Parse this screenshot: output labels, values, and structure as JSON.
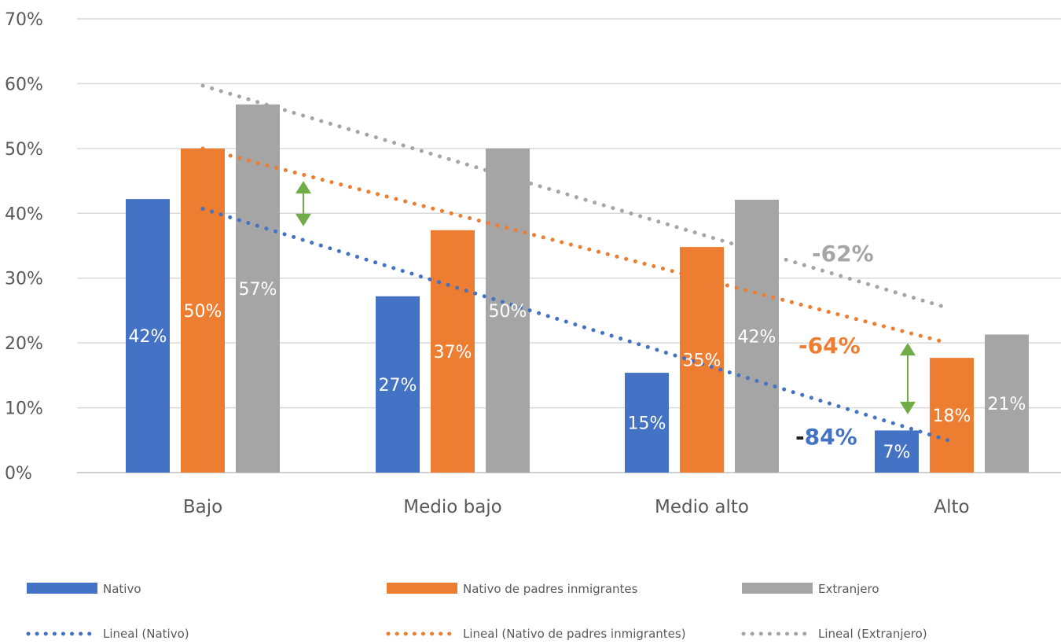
{
  "chart_data": {
    "type": "bar",
    "categories": [
      "Bajo",
      "Medio bajo",
      "Medio alto",
      "Alto"
    ],
    "ylim": [
      0,
      0.7
    ],
    "yticks": [
      "0%",
      "10%",
      "20%",
      "30%",
      "40%",
      "50%",
      "60%",
      "70%"
    ],
    "grid": true,
    "legend_position": "bottom",
    "series": [
      {
        "name": "Nativo",
        "color": "#4472C4",
        "values": [
          0.422,
          0.272,
          0.154,
          0.065
        ],
        "labels": [
          "42%",
          "27%",
          "15%",
          "7%"
        ]
      },
      {
        "name": "Nativo de padres inmigrantes",
        "color": "#ED7D31",
        "values": [
          0.5,
          0.374,
          0.348,
          0.177
        ],
        "labels": [
          "50%",
          "37%",
          "35%",
          "18%"
        ]
      },
      {
        "name": "Extranjero",
        "color": "#A5A5A5",
        "values": [
          0.568,
          0.5,
          0.421,
          0.213
        ],
        "labels": [
          "57%",
          "50%",
          "42%",
          "21%"
        ]
      }
    ],
    "trendlines": [
      {
        "name": "Lineal (Nativo)",
        "color": "#4472C4",
        "start": 0.407,
        "end": 0.05
      },
      {
        "name": "Lineal (Nativo de padres inmigrantes)",
        "color": "#ED7D31",
        "start": 0.5,
        "end": 0.2
      },
      {
        "name": "Lineal (Extranjero)",
        "color": "#A5A5A5",
        "start": 0.597,
        "end": 0.254
      }
    ],
    "annotations": [
      {
        "text": "-62%",
        "color": "#A5A5A5"
      },
      {
        "text": "-64%",
        "color": "#ED7D31"
      },
      {
        "text": "-84%",
        "color": "#4472C4"
      }
    ],
    "gap_arrows": [
      {
        "category": "Bajo",
        "from": 0.45,
        "to": 0.38,
        "color": "#70AD47"
      },
      {
        "category": "Alto",
        "from": 0.2,
        "to": 0.09,
        "color": "#70AD47"
      }
    ]
  }
}
